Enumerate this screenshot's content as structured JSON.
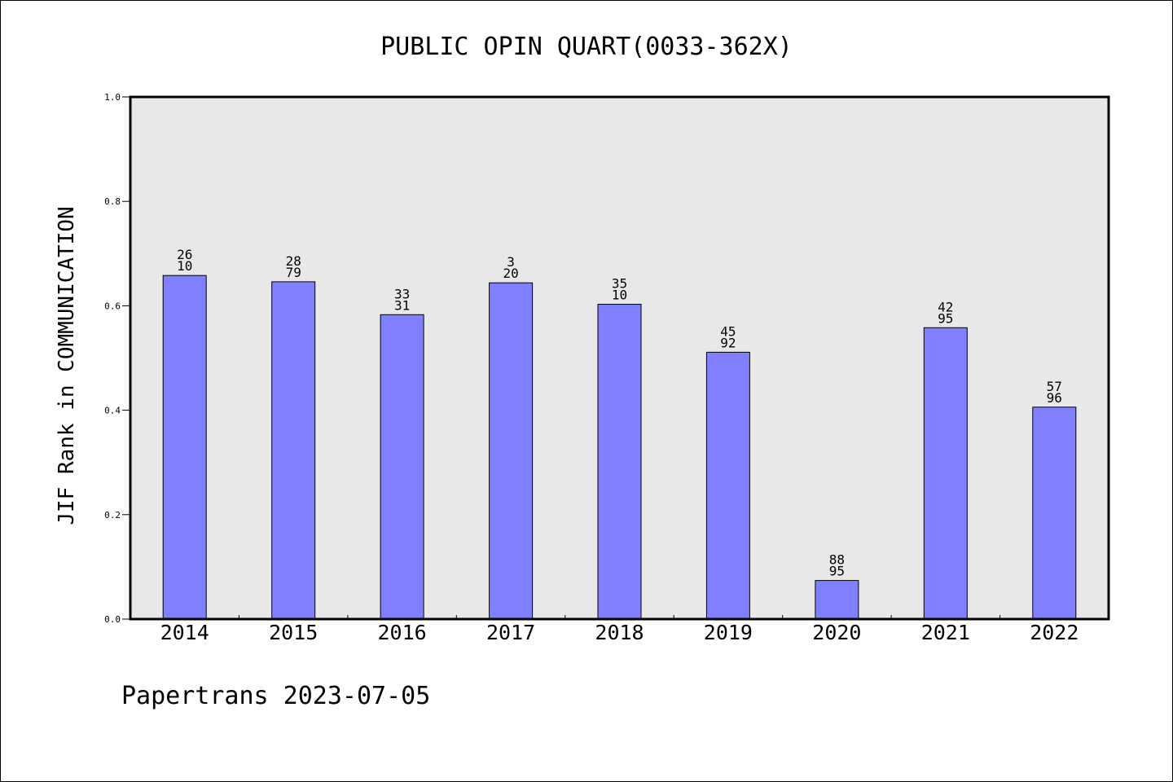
{
  "chart_data": {
    "type": "bar",
    "title": "PUBLIC OPIN QUART(0033-362X)",
    "xlabel": "",
    "ylabel": "JIF Rank in COMMUNICATION",
    "ylim": [
      0,
      1.0
    ],
    "yticks": [
      "0.0",
      "0.2",
      "0.4",
      "0.6",
      "0.8",
      "1.0"
    ],
    "categories": [
      "2014",
      "2015",
      "2016",
      "2017",
      "2018",
      "2019",
      "2020",
      "2021",
      "2022"
    ],
    "values": [
      0.658,
      0.646,
      0.583,
      0.644,
      0.603,
      0.511,
      0.074,
      0.558,
      0.406
    ],
    "bar_labels": [
      [
        "26",
        "10"
      ],
      [
        "28",
        "79"
      ],
      [
        "33",
        "31"
      ],
      [
        "3",
        "20"
      ],
      [
        "35",
        "10"
      ],
      [
        "45",
        "92"
      ],
      [
        "88",
        "95"
      ],
      [
        "42",
        "95"
      ],
      [
        "57",
        "96"
      ]
    ],
    "grid": false,
    "legend": "none",
    "colors": {
      "bar_fill": "#8080ff",
      "bar_stroke": "#000000",
      "plot_background": "#e8e8e8",
      "axis": "#000000"
    }
  },
  "footer": {
    "text": "Papertrans 2023-07-05"
  }
}
